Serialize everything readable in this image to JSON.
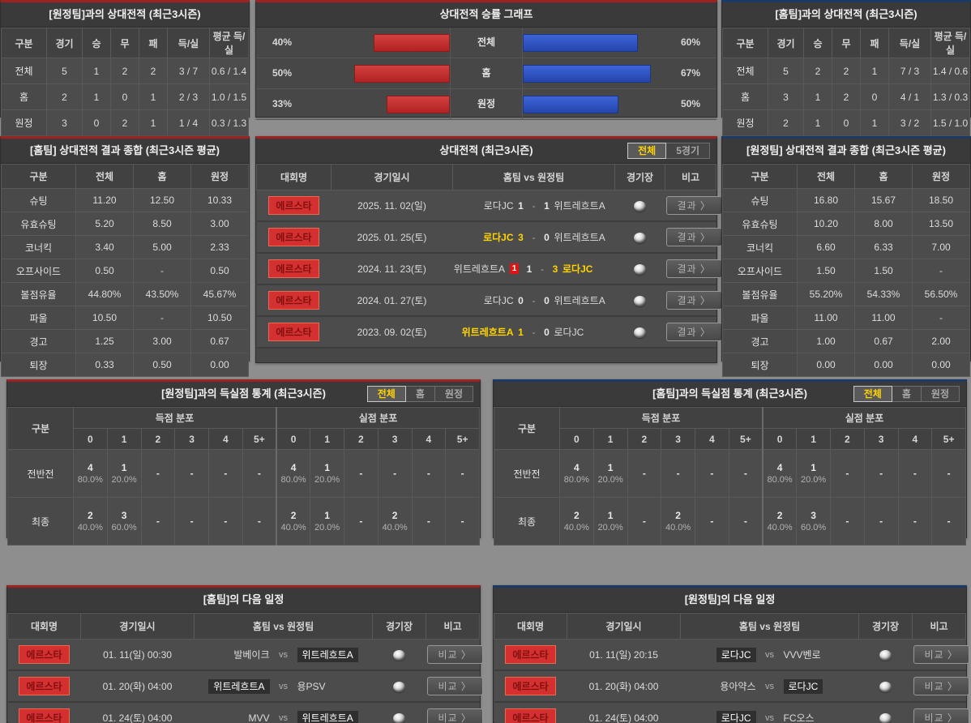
{
  "colors": {
    "accent_red": "#9e2222",
    "accent_blue": "#1d3a66",
    "bar_red": "#c23030",
    "bar_blue": "#2f54c4",
    "highlight_yellow": "#ffd400",
    "badge_red": "#d43030",
    "panel_bg": "#474747"
  },
  "record_vs_away": {
    "title": "[원정팀]과의 상대전적 (최근3시즌)",
    "headers": [
      "구분",
      "경기",
      "승",
      "무",
      "패",
      "득/실",
      "평균 득/실"
    ],
    "rows": [
      {
        "label": "전체",
        "values": [
          "5",
          "1",
          "2",
          "2",
          "3 / 7",
          "0.6 / 1.4"
        ]
      },
      {
        "label": "홈",
        "values": [
          "2",
          "1",
          "0",
          "1",
          "2 / 3",
          "1.0 / 1.5"
        ]
      },
      {
        "label": "원정",
        "values": [
          "3",
          "0",
          "2",
          "1",
          "1 / 4",
          "0.3 / 1.3"
        ]
      }
    ]
  },
  "record_vs_home": {
    "title": "[홈팀]과의 상대전적 (최근3시즌)",
    "headers": [
      "구분",
      "경기",
      "승",
      "무",
      "패",
      "득/실",
      "평균 득/실"
    ],
    "rows": [
      {
        "label": "전체",
        "values": [
          "5",
          "2",
          "2",
          "1",
          "7 / 3",
          "1.4 / 0.6"
        ]
      },
      {
        "label": "홈",
        "values": [
          "3",
          "1",
          "2",
          "0",
          "4 / 1",
          "1.3 / 0.3"
        ]
      },
      {
        "label": "원정",
        "values": [
          "2",
          "1",
          "0",
          "1",
          "3 / 2",
          "1.5 / 1.0"
        ]
      }
    ]
  },
  "winrate_chart": {
    "title": "상대전적 승률 그래프",
    "rows": [
      {
        "label": "전체",
        "left_label": "40%",
        "red": 40,
        "blue": 60,
        "right_label": "60%"
      },
      {
        "label": "홈",
        "left_label": "50%",
        "red": 50,
        "blue": 67,
        "right_label": "67%"
      },
      {
        "label": "원정",
        "left_label": "33%",
        "red": 33,
        "blue": 50,
        "right_label": "50%"
      }
    ]
  },
  "chart_data": {
    "type": "bar",
    "title": "상대전적 승률 그래프",
    "categories": [
      "전체",
      "홈",
      "원정"
    ],
    "series": [
      {
        "name": "red-left-winrate",
        "values": [
          40,
          50,
          33
        ]
      },
      {
        "name": "blue-right-winrate",
        "values": [
          60,
          67,
          50
        ]
      }
    ],
    "unit": "%",
    "layout": "horizontal-bidirectional"
  },
  "summary_home": {
    "title": "[홈팀] 상대전적 결과 종합 (최근3시즌 평균)",
    "headers": [
      "구분",
      "전체",
      "홈",
      "원정"
    ],
    "rows": [
      {
        "label": "슈팅",
        "values": [
          "11.20",
          "12.50",
          "10.33"
        ]
      },
      {
        "label": "유효슈팅",
        "values": [
          "5.20",
          "8.50",
          "3.00"
        ]
      },
      {
        "label": "코너킥",
        "values": [
          "3.40",
          "5.00",
          "2.33"
        ]
      },
      {
        "label": "오프사이드",
        "values": [
          "0.50",
          "-",
          "0.50"
        ]
      },
      {
        "label": "볼점유율",
        "values": [
          "44.80%",
          "43.50%",
          "45.67%"
        ]
      },
      {
        "label": "파울",
        "values": [
          "10.50",
          "-",
          "10.50"
        ]
      },
      {
        "label": "경고",
        "values": [
          "1.25",
          "3.00",
          "0.67"
        ]
      },
      {
        "label": "퇴장",
        "values": [
          "0.33",
          "0.50",
          "0.00"
        ]
      }
    ]
  },
  "summary_away": {
    "title": "[원정팀] 상대전적 결과 종합 (최근3시즌 평균)",
    "headers": [
      "구분",
      "전체",
      "홈",
      "원정"
    ],
    "rows": [
      {
        "label": "슈팅",
        "values": [
          "16.80",
          "15.67",
          "18.50"
        ]
      },
      {
        "label": "유효슈팅",
        "values": [
          "10.20",
          "8.00",
          "13.50"
        ]
      },
      {
        "label": "코너킥",
        "values": [
          "6.60",
          "6.33",
          "7.00"
        ]
      },
      {
        "label": "오프사이드",
        "values": [
          "1.50",
          "1.50",
          "-"
        ]
      },
      {
        "label": "볼점유율",
        "values": [
          "55.20%",
          "54.33%",
          "56.50%"
        ]
      },
      {
        "label": "파울",
        "values": [
          "11.00",
          "11.00",
          "-"
        ]
      },
      {
        "label": "경고",
        "values": [
          "1.00",
          "0.67",
          "2.00"
        ]
      },
      {
        "label": "퇴장",
        "values": [
          "0.00",
          "0.00",
          "0.00"
        ]
      }
    ]
  },
  "h2h": {
    "title": "상대전적 (최근3시즌)",
    "tabs": [
      {
        "label": "전체",
        "state": "active"
      },
      {
        "label": "5경기",
        "state": ""
      }
    ],
    "headers": [
      "대회명",
      "경기일시",
      "홈팀  vs  원정팀",
      "경기장",
      "비고"
    ],
    "action_label": "결과 〉",
    "rows": [
      {
        "league": "에르스타",
        "date": "2025. 11. 02(일)",
        "home": "로다JC",
        "home_cls": "",
        "home_badge": "",
        "hs": "1",
        "hs_cls": "",
        "as": "1",
        "as_cls": "",
        "away": "위트레흐트A",
        "away_cls": ""
      },
      {
        "league": "에르스타",
        "date": "2025. 01. 25(토)",
        "home": "로다JC",
        "home_cls": "win",
        "home_badge": "",
        "hs": "3",
        "hs_cls": "win",
        "as": "0",
        "as_cls": "",
        "away": "위트레흐트A",
        "away_cls": ""
      },
      {
        "league": "에르스타",
        "date": "2024. 11. 23(토)",
        "home": "위트레흐트A",
        "home_cls": "",
        "home_badge": "1",
        "hs": "1",
        "hs_cls": "",
        "as": "3",
        "as_cls": "win",
        "away": "로다JC",
        "away_cls": "win"
      },
      {
        "league": "에르스타",
        "date": "2024. 01. 27(토)",
        "home": "로다JC",
        "home_cls": "",
        "home_badge": "",
        "hs": "0",
        "hs_cls": "",
        "as": "0",
        "as_cls": "",
        "away": "위트레흐트A",
        "away_cls": ""
      },
      {
        "league": "에르스타",
        "date": "2023. 09. 02(토)",
        "home": "위트레흐트A",
        "home_cls": "win",
        "home_badge": "",
        "hs": "1",
        "hs_cls": "win",
        "as": "0",
        "as_cls": "",
        "away": "로다JC",
        "away_cls": ""
      }
    ]
  },
  "goals_vs_away": {
    "title": "[원정팀]과의 득실점 통계 (최근3시즌)",
    "tabs": [
      {
        "label": "전체",
        "state": "active"
      },
      {
        "label": "홈",
        "state": ""
      },
      {
        "label": "원정",
        "state": ""
      }
    ],
    "col_label": "구분",
    "score_header": "득점 분포",
    "concede_header": "실점 분포",
    "cols": [
      "0",
      "1",
      "2",
      "3",
      "4",
      "5+"
    ],
    "rows": [
      {
        "label": "전반전",
        "score": [
          {
            "n": "4",
            "p": "80.0%"
          },
          {
            "n": "1",
            "p": "20.0%"
          },
          {
            "n": "-",
            "p": ""
          },
          {
            "n": "-",
            "p": ""
          },
          {
            "n": "-",
            "p": ""
          },
          {
            "n": "-",
            "p": ""
          }
        ],
        "concede": [
          {
            "n": "4",
            "p": "80.0%"
          },
          {
            "n": "1",
            "p": "20.0%"
          },
          {
            "n": "-",
            "p": ""
          },
          {
            "n": "-",
            "p": ""
          },
          {
            "n": "-",
            "p": ""
          },
          {
            "n": "-",
            "p": ""
          }
        ]
      },
      {
        "label": "최종",
        "score": [
          {
            "n": "2",
            "p": "40.0%"
          },
          {
            "n": "3",
            "p": "60.0%"
          },
          {
            "n": "-",
            "p": ""
          },
          {
            "n": "-",
            "p": ""
          },
          {
            "n": "-",
            "p": ""
          },
          {
            "n": "-",
            "p": ""
          }
        ],
        "concede": [
          {
            "n": "2",
            "p": "40.0%"
          },
          {
            "n": "1",
            "p": "20.0%"
          },
          {
            "n": "-",
            "p": ""
          },
          {
            "n": "2",
            "p": "40.0%"
          },
          {
            "n": "-",
            "p": ""
          },
          {
            "n": "-",
            "p": ""
          }
        ]
      }
    ]
  },
  "goals_vs_home": {
    "title": "[홈팀]과의 득실점 통계 (최근3시즌)",
    "tabs": [
      {
        "label": "전체",
        "state": "active"
      },
      {
        "label": "홈",
        "state": ""
      },
      {
        "label": "원정",
        "state": ""
      }
    ],
    "col_label": "구분",
    "score_header": "득점 분포",
    "concede_header": "실점 분포",
    "cols": [
      "0",
      "1",
      "2",
      "3",
      "4",
      "5+"
    ],
    "rows": [
      {
        "label": "전반전",
        "score": [
          {
            "n": "4",
            "p": "80.0%"
          },
          {
            "n": "1",
            "p": "20.0%"
          },
          {
            "n": "-",
            "p": ""
          },
          {
            "n": "-",
            "p": ""
          },
          {
            "n": "-",
            "p": ""
          },
          {
            "n": "-",
            "p": ""
          }
        ],
        "concede": [
          {
            "n": "4",
            "p": "80.0%"
          },
          {
            "n": "1",
            "p": "20.0%"
          },
          {
            "n": "-",
            "p": ""
          },
          {
            "n": "-",
            "p": ""
          },
          {
            "n": "-",
            "p": ""
          },
          {
            "n": "-",
            "p": ""
          }
        ]
      },
      {
        "label": "최종",
        "score": [
          {
            "n": "2",
            "p": "40.0%"
          },
          {
            "n": "1",
            "p": "20.0%"
          },
          {
            "n": "-",
            "p": ""
          },
          {
            "n": "2",
            "p": "40.0%"
          },
          {
            "n": "-",
            "p": ""
          },
          {
            "n": "-",
            "p": ""
          }
        ],
        "concede": [
          {
            "n": "2",
            "p": "40.0%"
          },
          {
            "n": "3",
            "p": "60.0%"
          },
          {
            "n": "-",
            "p": ""
          },
          {
            "n": "-",
            "p": ""
          },
          {
            "n": "-",
            "p": ""
          },
          {
            "n": "-",
            "p": ""
          }
        ]
      }
    ]
  },
  "schedule_home": {
    "title": "[홈팀]의 다음 일정",
    "headers": [
      "대회명",
      "경기일시",
      "홈팀  vs  원정팀",
      "경기장",
      "비고"
    ],
    "action_label": "비교 〉",
    "rows": [
      {
        "league": "에르스타",
        "date": "01. 11(일) 00:30",
        "home": "발베이크",
        "home_hl": "",
        "away": "위트레흐트A",
        "away_hl": "hl"
      },
      {
        "league": "에르스타",
        "date": "01. 20(화) 04:00",
        "home": "위트레흐트A",
        "home_hl": "hl",
        "away": "용PSV",
        "away_hl": ""
      },
      {
        "league": "에르스타",
        "date": "01. 24(토) 04:00",
        "home": "MVV",
        "home_hl": "",
        "away": "위트레흐트A",
        "away_hl": "hl"
      }
    ]
  },
  "schedule_away": {
    "title": "[원정팀]의 다음 일정",
    "headers": [
      "대회명",
      "경기일시",
      "홈팀  vs  원정팀",
      "경기장",
      "비고"
    ],
    "action_label": "비교 〉",
    "rows": [
      {
        "league": "에르스타",
        "date": "01. 11(일) 20:15",
        "home": "로다JC",
        "home_hl": "hl",
        "away": "VVV벤로",
        "away_hl": ""
      },
      {
        "league": "에르스타",
        "date": "01. 20(화) 04:00",
        "home": "용아약스",
        "home_hl": "",
        "away": "로다JC",
        "away_hl": "hl"
      },
      {
        "league": "에르스타",
        "date": "01. 24(토) 04:00",
        "home": "로다JC",
        "home_hl": "hl",
        "away": "FC오스",
        "away_hl": ""
      }
    ]
  }
}
